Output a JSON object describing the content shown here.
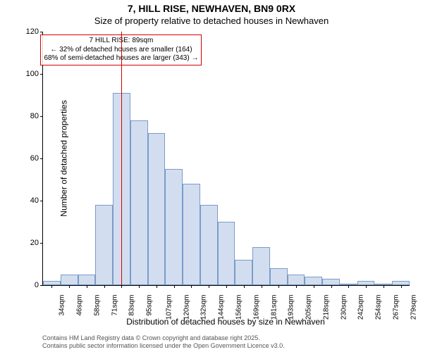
{
  "title_main": "7, HILL RISE, NEWHAVEN, BN9 0RX",
  "title_sub": "Size of property relative to detached houses in Newhaven",
  "ylabel": "Number of detached properties",
  "xlabel": "Distribution of detached houses by size in Newhaven",
  "footer_line1": "Contains HM Land Registry data © Crown copyright and database right 2025.",
  "footer_line2": "Contains public sector information licensed under the Open Government Licence v3.0.",
  "chart": {
    "type": "histogram",
    "ylim": [
      0,
      120
    ],
    "ytick_step": 20,
    "yticks": [
      0,
      20,
      40,
      60,
      80,
      100,
      120
    ],
    "xticks": [
      "34sqm",
      "46sqm",
      "58sqm",
      "71sqm",
      "83sqm",
      "95sqm",
      "107sqm",
      "120sqm",
      "132sqm",
      "144sqm",
      "156sqm",
      "169sqm",
      "181sqm",
      "193sqm",
      "205sqm",
      "218sqm",
      "230sqm",
      "242sqm",
      "254sqm",
      "267sqm",
      "279sqm"
    ],
    "values": [
      2,
      5,
      5,
      38,
      91,
      78,
      72,
      55,
      48,
      38,
      30,
      12,
      18,
      8,
      5,
      4,
      3,
      0,
      2,
      0,
      2
    ],
    "bar_fill": "#d2deef",
    "bar_stroke": "#7a9bc9",
    "background_color": "#ffffff",
    "marker": {
      "position_index": 4.5,
      "color": "#d40000",
      "label_title": "7 HILL RISE: 89sqm",
      "label_line1": "← 32% of detached houses are smaller (164)",
      "label_line2": "68% of semi-detached houses are larger (343) →"
    },
    "title_fontsize": 14,
    "label_fontsize": 12,
    "tick_fontsize": 10
  }
}
